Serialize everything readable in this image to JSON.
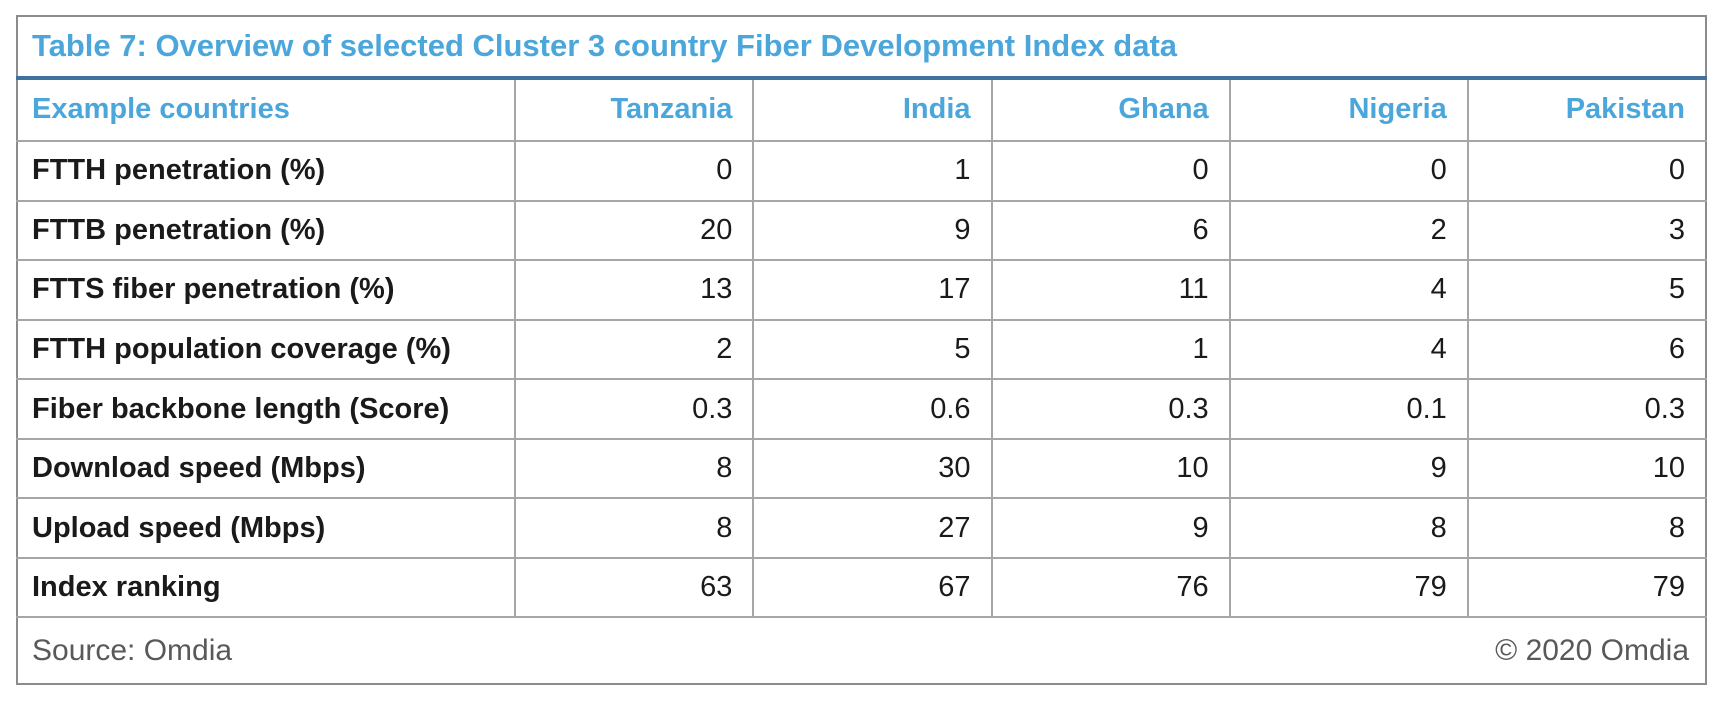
{
  "table": {
    "title": "Table 7: Overview of selected Cluster 3 country Fiber Development Index data",
    "columns": [
      "Example countries",
      "Tanzania",
      "India",
      "Ghana",
      "Nigeria",
      "Pakistan"
    ],
    "rows": [
      {
        "label": "FTTH penetration (%)",
        "values": [
          "0",
          "1",
          "0",
          "0",
          "0"
        ]
      },
      {
        "label": "FTTB penetration (%)",
        "values": [
          "20",
          "9",
          "6",
          "2",
          "3"
        ]
      },
      {
        "label": "FTTS fiber penetration (%)",
        "values": [
          "13",
          "17",
          "11",
          "4",
          "5"
        ]
      },
      {
        "label": "FTTH population coverage (%)",
        "values": [
          "2",
          "5",
          "1",
          "4",
          "6"
        ]
      },
      {
        "label": "Fiber backbone length (Score)",
        "values": [
          "0.3",
          "0.6",
          "0.3",
          "0.1",
          "0.3"
        ]
      },
      {
        "label": "Download speed (Mbps)",
        "values": [
          "8",
          "30",
          "10",
          "9",
          "10"
        ]
      },
      {
        "label": "Upload speed (Mbps)",
        "values": [
          "8",
          "27",
          "9",
          "8",
          "8"
        ]
      },
      {
        "label": "Index ranking",
        "values": [
          "63",
          "67",
          "76",
          "79",
          "79"
        ]
      }
    ],
    "footer": {
      "source": "Source: Omdia",
      "copyright": "© 2020 Omdia"
    }
  },
  "colors": {
    "accent_blue": "#4BA6DB",
    "title_rule_blue": "#41719C",
    "border_gray": "#A6A6A6",
    "outer_border_gray": "#8C8C8C",
    "footer_text_gray": "#595959",
    "body_text": "#1A1A1A"
  },
  "chart_data": {
    "type": "table",
    "title": "Table 7: Overview of selected Cluster 3 country Fiber Development Index data",
    "categories": [
      "Tanzania",
      "India",
      "Ghana",
      "Nigeria",
      "Pakistan"
    ],
    "series": [
      {
        "name": "FTTH penetration (%)",
        "values": [
          0,
          1,
          0,
          0,
          0
        ]
      },
      {
        "name": "FTTB penetration (%)",
        "values": [
          20,
          9,
          6,
          2,
          3
        ]
      },
      {
        "name": "FTTS fiber penetration (%)",
        "values": [
          13,
          17,
          11,
          4,
          5
        ]
      },
      {
        "name": "FTTH population coverage (%)",
        "values": [
          2,
          5,
          1,
          4,
          6
        ]
      },
      {
        "name": "Fiber backbone length (Score)",
        "values": [
          0.3,
          0.6,
          0.3,
          0.1,
          0.3
        ]
      },
      {
        "name": "Download speed (Mbps)",
        "values": [
          8,
          30,
          10,
          9,
          10
        ]
      },
      {
        "name": "Upload speed (Mbps)",
        "values": [
          8,
          27,
          9,
          8,
          8
        ]
      },
      {
        "name": "Index ranking",
        "values": [
          63,
          67,
          76,
          79,
          79
        ]
      }
    ]
  }
}
